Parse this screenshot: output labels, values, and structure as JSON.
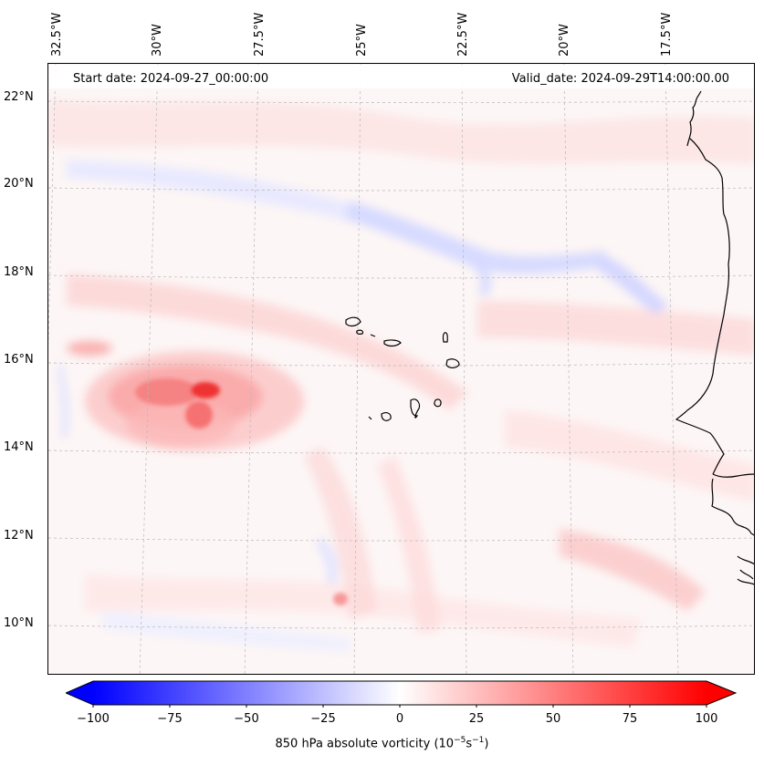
{
  "header": {
    "start_date": "Start date: 2024-09-27_00:00:00",
    "valid_date": "Valid_date: 2024-09-29T14:00:00.00"
  },
  "longitude_labels": [
    "32.5°W",
    "30°W",
    "27.5°W",
    "25°W",
    "22.5°W",
    "20°W",
    "17.5°W"
  ],
  "latitude_labels": [
    "22°N",
    "20°N",
    "18°N",
    "16°N",
    "14°N",
    "12°N",
    "10°N"
  ],
  "colorbar": {
    "ticks": [
      "−100",
      "−75",
      "−50",
      "−25",
      "0",
      "25",
      "50",
      "75",
      "100"
    ],
    "title_main": "850 hPa absolute vorticity (10",
    "title_exp1": "−5",
    "title_mid": "s",
    "title_exp2": "−1",
    "title_end": ")",
    "min": -100,
    "max": 100,
    "colormap": "bwr",
    "extend": "both",
    "color_low": "#0000ff",
    "color_mid": "#ffffff",
    "color_high": "#ff0000"
  },
  "map": {
    "field": "850 hPa absolute vorticity",
    "projection": "lambert-conformal",
    "region": "Eastern tropical Atlantic, Cabo Verde Islands and West African coast",
    "features": [
      "coastline",
      "gridlines"
    ],
    "max_vorticity_center": {
      "lat": 15.3,
      "lon": -29.3,
      "value": 100
    }
  }
}
